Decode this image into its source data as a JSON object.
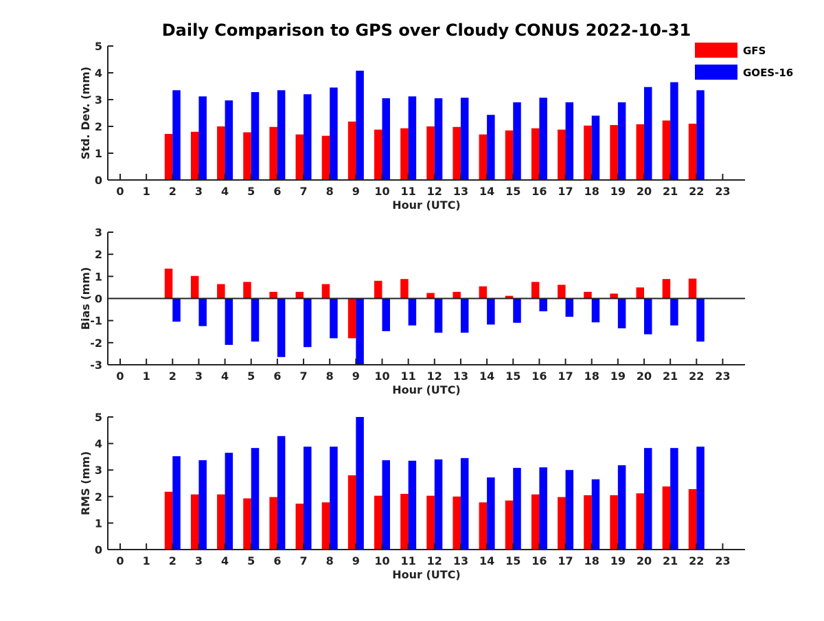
{
  "chart_title": "Daily Comparison to GPS over Cloudy CONUS 2022-10-31",
  "legend": [
    {
      "label": "GFS",
      "color": "#ff0000"
    },
    {
      "label": "GOES-16",
      "color": "#0000ff"
    }
  ],
  "colors": {
    "gfs": "#ff0000",
    "goes16": "#0000ff",
    "axis": "#222222"
  },
  "chart_data": [
    {
      "type": "bar",
      "x": [
        0,
        1,
        2,
        3,
        4,
        5,
        6,
        7,
        8,
        9,
        10,
        11,
        12,
        13,
        14,
        15,
        16,
        17,
        18,
        19,
        20,
        21,
        22,
        23
      ],
      "xlabel": "Hour (UTC)",
      "ylabel": "Std. Dev. (mm)",
      "ylim": [
        0,
        5
      ],
      "yticks": [
        0,
        1,
        2,
        3,
        4,
        5
      ],
      "series": [
        {
          "name": "GFS",
          "values": [
            null,
            null,
            1.72,
            1.8,
            2.0,
            1.78,
            1.98,
            1.7,
            1.65,
            2.18,
            1.88,
            1.93,
            2.0,
            1.98,
            1.7,
            1.85,
            1.93,
            1.88,
            2.03,
            2.05,
            2.08,
            2.22,
            2.1,
            null
          ]
        },
        {
          "name": "GOES-16",
          "values": [
            null,
            null,
            3.35,
            3.12,
            2.97,
            3.28,
            3.35,
            3.2,
            3.45,
            4.08,
            3.05,
            3.12,
            3.05,
            3.07,
            2.43,
            2.9,
            3.07,
            2.9,
            2.4,
            2.9,
            3.47,
            3.65,
            3.35,
            null
          ]
        }
      ]
    },
    {
      "type": "bar",
      "x": [
        0,
        1,
        2,
        3,
        4,
        5,
        6,
        7,
        8,
        9,
        10,
        11,
        12,
        13,
        14,
        15,
        16,
        17,
        18,
        19,
        20,
        21,
        22,
        23
      ],
      "xlabel": "Hour (UTC)",
      "ylabel": "Bias (mm)",
      "ylim": [
        -3,
        3
      ],
      "yticks": [
        -3,
        -2,
        -1,
        0,
        1,
        2,
        3
      ],
      "series": [
        {
          "name": "GFS",
          "values": [
            null,
            null,
            1.35,
            1.02,
            0.65,
            0.75,
            0.3,
            0.3,
            0.65,
            -1.8,
            0.8,
            0.88,
            0.25,
            0.3,
            0.55,
            0.12,
            0.75,
            0.62,
            0.3,
            0.22,
            0.5,
            0.88,
            0.9,
            null
          ]
        },
        {
          "name": "GOES-16",
          "values": [
            null,
            null,
            -1.05,
            -1.25,
            -2.1,
            -1.95,
            -2.65,
            -2.2,
            -1.8,
            -3.0,
            -1.48,
            -1.22,
            -1.55,
            -1.55,
            -1.18,
            -1.1,
            -0.58,
            -0.83,
            -1.08,
            -1.35,
            -1.62,
            -1.22,
            -1.95,
            null
          ]
        }
      ]
    },
    {
      "type": "bar",
      "x": [
        0,
        1,
        2,
        3,
        4,
        5,
        6,
        7,
        8,
        9,
        10,
        11,
        12,
        13,
        14,
        15,
        16,
        17,
        18,
        19,
        20,
        21,
        22,
        23
      ],
      "xlabel": "Hour (UTC)",
      "ylabel": "RMS (mm)",
      "ylim": [
        0,
        5
      ],
      "yticks": [
        0,
        1,
        2,
        3,
        4,
        5
      ],
      "series": [
        {
          "name": "GFS",
          "values": [
            null,
            null,
            2.18,
            2.08,
            2.08,
            1.93,
            1.98,
            1.73,
            1.78,
            2.8,
            2.03,
            2.1,
            2.03,
            2.0,
            1.78,
            1.85,
            2.08,
            1.98,
            2.05,
            2.05,
            2.12,
            2.38,
            2.28,
            null
          ]
        },
        {
          "name": "GOES-16",
          "values": [
            null,
            null,
            3.52,
            3.37,
            3.65,
            3.83,
            4.28,
            3.88,
            3.88,
            5.0,
            3.37,
            3.35,
            3.4,
            3.45,
            2.72,
            3.08,
            3.1,
            3.0,
            2.65,
            3.18,
            3.83,
            3.83,
            3.88,
            null
          ]
        }
      ]
    }
  ]
}
